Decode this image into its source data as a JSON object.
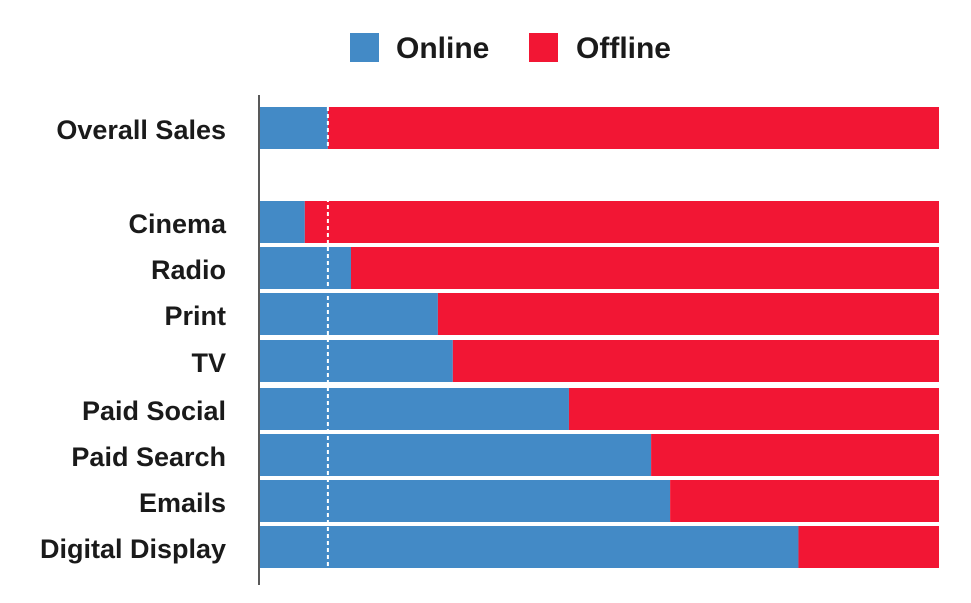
{
  "chart_data": {
    "type": "bar",
    "orientation": "horizontal",
    "stacked": true,
    "normalized": true,
    "categories": [
      "Overall Sales",
      "Cinema",
      "Radio",
      "Print",
      "TV",
      "Paid Social",
      "Paid Search",
      "Emails",
      "Digital Display"
    ],
    "series": [
      {
        "name": "Online",
        "color": "#438ac6",
        "values": [
          10,
          6.6,
          13.4,
          26.2,
          28.4,
          45.5,
          57.6,
          60.4,
          79.3
        ]
      },
      {
        "name": "Offline",
        "color": "#f21634",
        "values": [
          90,
          93.4,
          86.6,
          73.8,
          71.6,
          54.5,
          42.4,
          39.6,
          20.7
        ]
      }
    ],
    "reference_line": {
      "value": 10,
      "style": "dashed",
      "color": "#ffffff"
    },
    "xlim": [
      0,
      100
    ],
    "legend_placement": "top-center",
    "grid": false
  }
}
